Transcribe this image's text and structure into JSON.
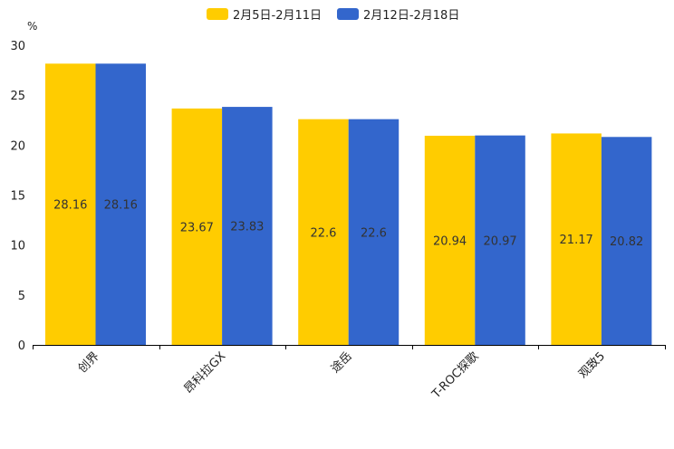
{
  "chart_data": {
    "type": "bar",
    "title": "",
    "xlabel": "",
    "ylabel": "%",
    "ylim": [
      0,
      30
    ],
    "yticks": [
      0,
      5,
      10,
      15,
      20,
      25,
      30
    ],
    "categories": [
      "创界",
      "昂科拉GX",
      "途岳",
      "T-ROC探歌",
      "观致5"
    ],
    "series": [
      {
        "name": "2月5日-2月11日",
        "color": "#ffcc00",
        "values": [
          28.16,
          23.67,
          22.6,
          20.94,
          21.17
        ],
        "labels": [
          "28.16",
          "23.67",
          "22.6",
          "20.94",
          "21.17"
        ]
      },
      {
        "name": "2月12日-2月18日",
        "color": "#3366cc",
        "values": [
          28.16,
          23.83,
          22.6,
          20.97,
          20.82
        ],
        "labels": [
          "28.16",
          "23.83",
          "22.6",
          "20.97",
          "20.82"
        ]
      }
    ],
    "legend": "top-center",
    "grid": false
  }
}
